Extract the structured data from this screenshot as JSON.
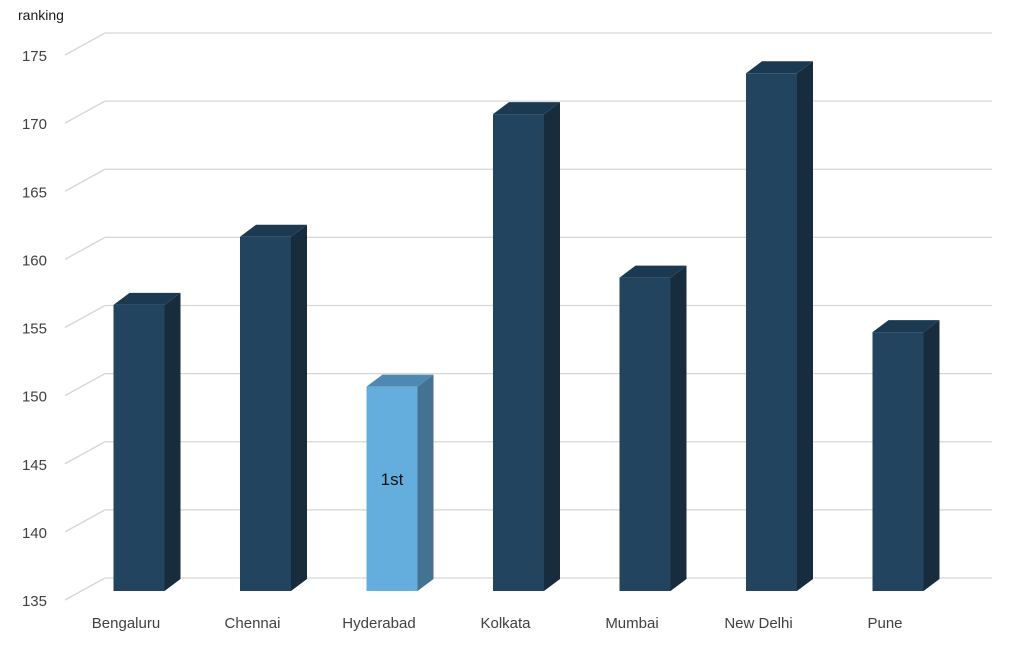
{
  "chart_data": {
    "type": "bar",
    "ylabel": "ranking",
    "ylim": [
      135,
      175
    ],
    "yticks": [
      135,
      140,
      145,
      150,
      155,
      160,
      165,
      170,
      175
    ],
    "categories": [
      "Bengaluru",
      "Chennai",
      "Hyderabad",
      "Kolkata",
      "Mumbai",
      "New Delhi",
      "Pune"
    ],
    "values": [
      156,
      161,
      150,
      170,
      158,
      173,
      154
    ],
    "highlight": "Hyderabad",
    "highlight_label": "1st",
    "grid": true,
    "legend": "none",
    "style": "3d-column"
  },
  "colors": {
    "bar_front": "#22445e",
    "bar_side": "#172c3c",
    "bar_top": "#1b3a52",
    "highlight_front": "#64aede",
    "highlight_side": "#447292",
    "highlight_top": "#4f88b0",
    "grid": "#d6d6d6"
  }
}
